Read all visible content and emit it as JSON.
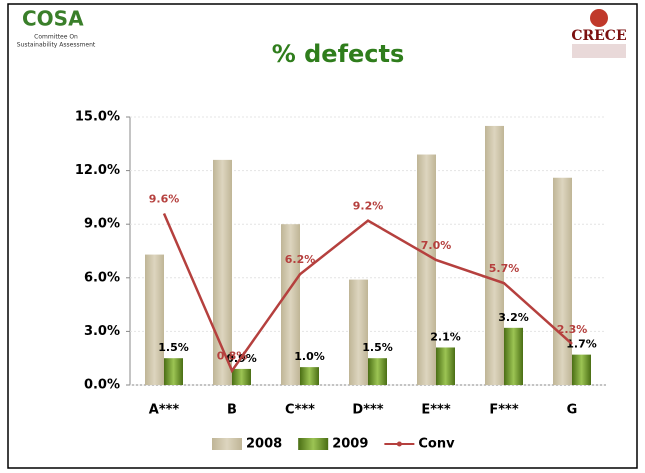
{
  "logos": {
    "left": {
      "name": "COSA",
      "line1": "Committee On",
      "line2": "Sustainability Assessment"
    },
    "right": {
      "name": "CRECE"
    }
  },
  "chart_data": {
    "type": "bar_line",
    "title": "% defects",
    "categories": [
      "A***",
      "B",
      "C***",
      "D***",
      "E***",
      "F***",
      "G"
    ],
    "series": [
      {
        "name": "2008",
        "kind": "bar",
        "color": "#d3cab0",
        "values": [
          7.3,
          12.6,
          9.0,
          5.9,
          12.9,
          14.5,
          11.6
        ]
      },
      {
        "name": "2009",
        "kind": "bar",
        "color": "#6e9a2a",
        "values": [
          1.5,
          0.9,
          1.0,
          1.5,
          2.1,
          3.2,
          1.7
        ],
        "value_labels": [
          "1.5%",
          "0.9%",
          "1.0%",
          "1.5%",
          "2.1%",
          "3.2%",
          "1.7%"
        ]
      },
      {
        "name": "Conv",
        "kind": "line",
        "color": "#b5403e",
        "values": [
          9.6,
          0.8,
          6.2,
          9.2,
          7.0,
          5.7,
          2.3
        ],
        "value_labels": [
          "9.6%",
          "0.8%",
          "6.2%",
          "9.2%",
          "7.0%",
          "5.7%",
          "2.3%"
        ]
      }
    ],
    "ylim": [
      0,
      15
    ],
    "yticks": [
      {
        "value": 0,
        "label": "0.0%"
      },
      {
        "value": 3,
        "label": "3.0%"
      },
      {
        "value": 6,
        "label": "6.0%"
      },
      {
        "value": 9,
        "label": "9.0%"
      },
      {
        "value": 12,
        "label": "12.0%"
      },
      {
        "value": 15,
        "label": "15.0%"
      }
    ],
    "grid": true,
    "legend": "bottom"
  }
}
